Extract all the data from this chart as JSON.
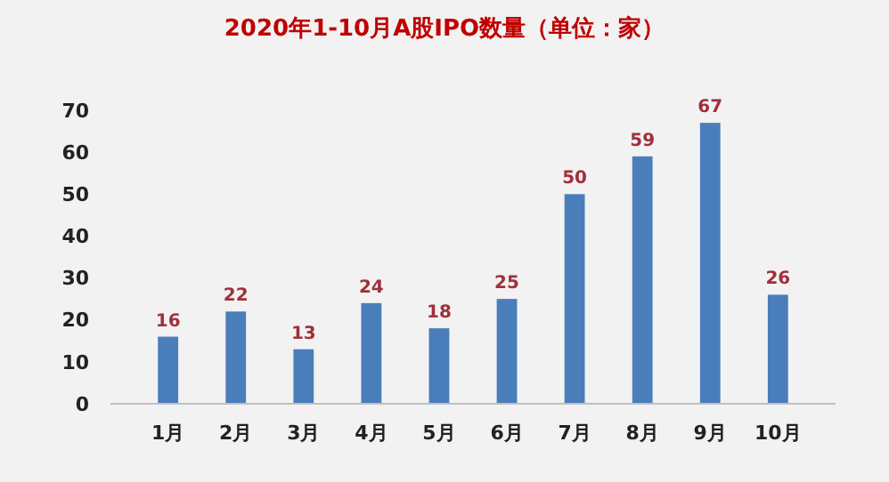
{
  "chart_data": {
    "type": "bar",
    "title": "2020年1-10月A股IPO数量（单位：家）",
    "categories": [
      "1月",
      "2月",
      "3月",
      "4月",
      "5月",
      "6月",
      "7月",
      "8月",
      "9月",
      "10月"
    ],
    "values": [
      16,
      22,
      13,
      24,
      18,
      25,
      50,
      59,
      67,
      26
    ],
    "color": "#4a7ebb",
    "ylim": [
      0,
      70
    ],
    "yticks": [
      0,
      10,
      20,
      30,
      40,
      50,
      60,
      70
    ],
    "grid": false,
    "data_labels": true
  }
}
